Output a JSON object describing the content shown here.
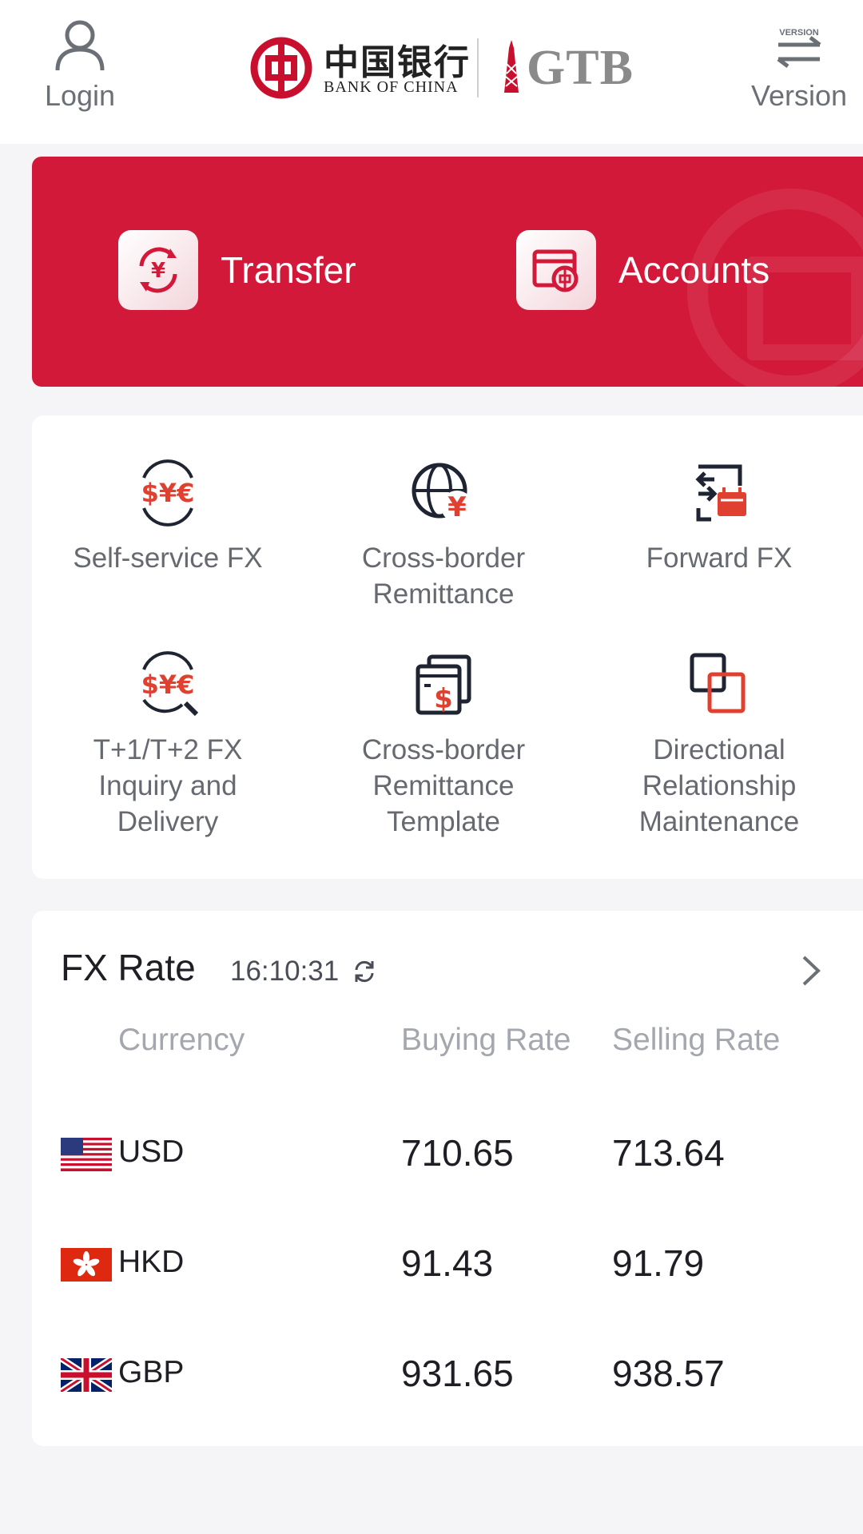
{
  "header": {
    "login_label": "Login",
    "version_label": "Version",
    "version_icon_text": "VERSION",
    "logo_cn": "中国银行",
    "logo_en": "BANK OF CHINA",
    "logo_gtb": "GTB"
  },
  "banner": {
    "transfer_label": "Transfer",
    "accounts_label": "Accounts",
    "transfer_icon_glyph": "¥"
  },
  "services": {
    "self_service_fx": "Self-service FX",
    "cross_border_remittance": "Cross-border\nRemittance",
    "forward_fx": "Forward FX",
    "t1t2_fx": "T+1/T+2 FX\nInquiry and\nDelivery",
    "remittance_template": "Cross-border\nRemittance\nTemplate",
    "directional_relationship": "Directional\nRelationship\nMaintenance",
    "fx_icon_glyphs": "$¥€",
    "cny_glyph": "¥",
    "usd_glyph": "$"
  },
  "fx_rate": {
    "title": "FX Rate",
    "time": "16:10:31",
    "col_currency": "Currency",
    "col_buying": "Buying Rate",
    "col_selling": "Selling Rate",
    "rows": [
      {
        "code": "USD",
        "buying": "710.65",
        "selling": "713.64"
      },
      {
        "code": "HKD",
        "buying": "91.43",
        "selling": "91.79"
      },
      {
        "code": "GBP",
        "buying": "931.65",
        "selling": "938.57"
      }
    ]
  },
  "colors": {
    "brand_red": "#d2193a",
    "icon_red": "#e0402f",
    "icon_dark": "#1f2433"
  }
}
